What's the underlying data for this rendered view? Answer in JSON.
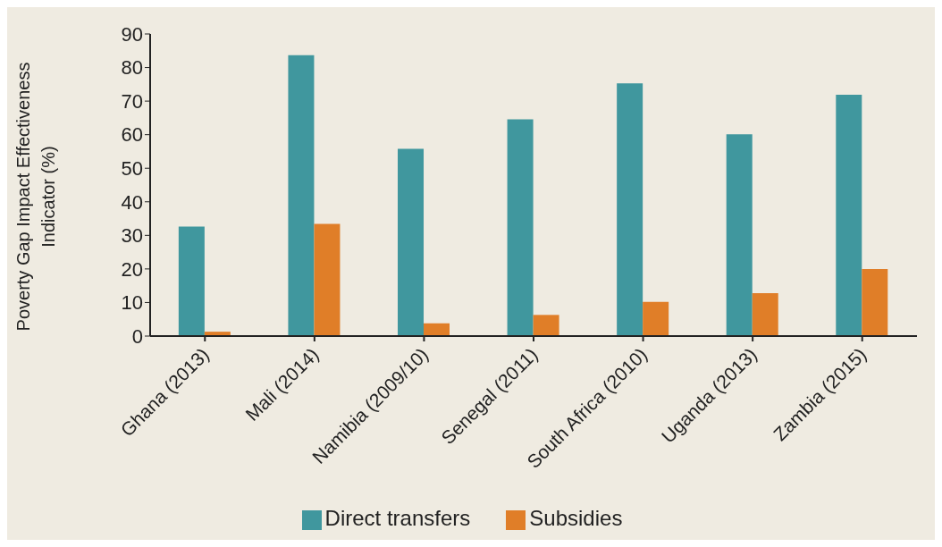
{
  "chart_data": {
    "type": "bar",
    "ylabel": "Poverty Gap Impact Effectiveness Indicator (%)",
    "categories": [
      "Ghana (2013)",
      "Mali (2014)",
      "Namibia (2009/10)",
      "Senegal (2011)",
      "South Africa (2010)",
      "Uganda (2013)",
      "Zambia (2015)"
    ],
    "series": [
      {
        "name": "Direct transfers",
        "color": "#40979e",
        "values": [
          32.6,
          83.7,
          55.8,
          64.6,
          75.3,
          60.1,
          71.9
        ]
      },
      {
        "name": "Subsidies",
        "color": "#e07e28",
        "values": [
          1.3,
          33.4,
          3.8,
          6.3,
          10.2,
          12.8,
          20.0
        ]
      }
    ],
    "ylim": [
      0,
      90
    ],
    "yticks": [
      0,
      10,
      20,
      30,
      40,
      50,
      60,
      70,
      80,
      90
    ],
    "grid": false,
    "legend": "bottom"
  }
}
